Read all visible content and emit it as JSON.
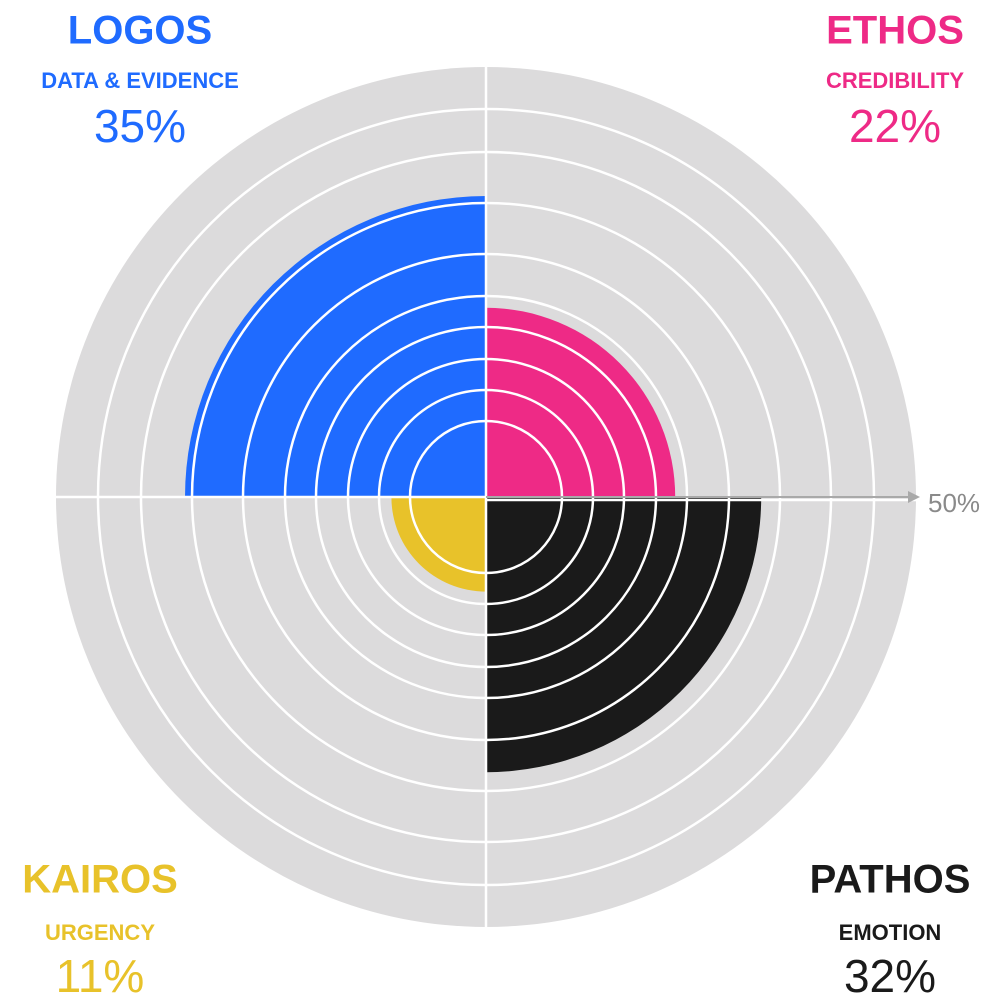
{
  "chart_data": {
    "type": "polar-area",
    "categories": [
      "LOGOS",
      "ETHOS",
      "PATHOS",
      "KAIROS"
    ],
    "subtitles": [
      "DATA & EVIDENCE",
      "CREDIBILITY",
      "EMOTION",
      "URGENCY"
    ],
    "values": [
      35,
      22,
      32,
      11
    ],
    "value_labels": [
      "35%",
      "22%",
      "32%",
      "11%"
    ],
    "colors": [
      "#1f6bff",
      "#ee2a86",
      "#1a1a1a",
      "#e8c22a"
    ],
    "rlim": [
      0,
      50
    ],
    "rticks": [
      {
        "value": 50,
        "label": "50%"
      }
    ]
  }
}
